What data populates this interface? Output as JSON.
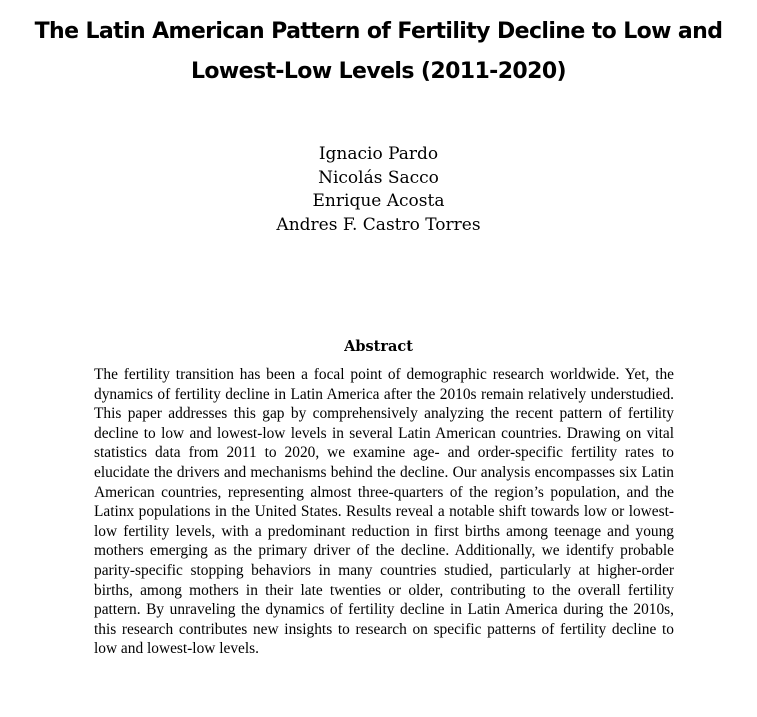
{
  "paper": {
    "title": "The Latin American Pattern of Fertility Decline to Low and Lowest-Low Levels (2011-2020)",
    "authors": [
      "Ignacio Pardo",
      "Nicolás Sacco",
      "Enrique Acosta",
      "Andres F. Castro Torres"
    ],
    "abstract": {
      "heading": "Abstract",
      "text": "The fertility transition has been a focal point of demographic research worldwide. Yet, the dynamics of fertility decline in Latin America after the 2010s remain relatively understudied. This paper addresses this gap by comprehensively analyzing the recent pattern of fertility decline to low and lowest-low levels in several Latin American countries. Drawing on vital statistics data from 2011 to 2020, we examine age- and order-specific fertility rates to elucidate the drivers and mechanisms behind the decline. Our analysis encompasses six Latin American countries, representing almost three-quarters of the region’s population, and the Latinx populations in the United States. Results reveal a notable shift towards low or lowest-low fertility levels, with a predominant reduction in first births among teenage and young mothers emerging as the primary driver of the decline. Additionally, we identify probable parity-specific stopping behaviors in many countries studied, particularly at higher-order births, among mothers in their late twenties or older, contributing to the overall fertility pattern. By unraveling the dynamics of fertility decline in Latin America during the 2010s, this research contributes new insights to research on specific patterns of fertility decline to low and lowest-low levels."
    }
  }
}
